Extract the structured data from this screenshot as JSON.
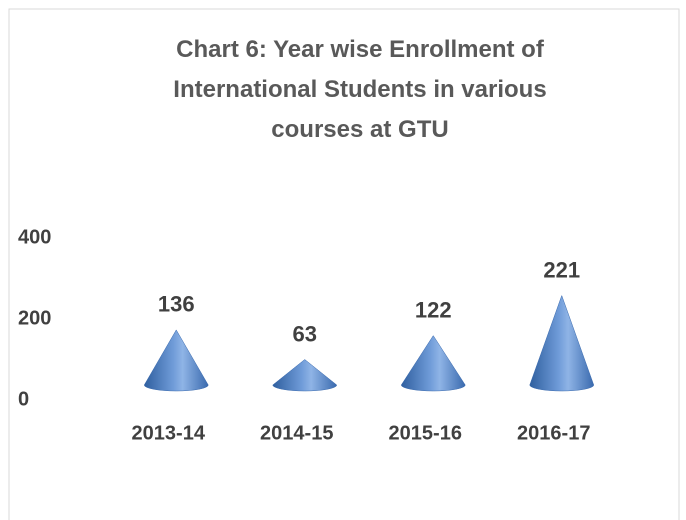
{
  "chart_data": {
    "type": "cone",
    "title": "Chart 6: Year wise Enrollment of International Students in various courses at GTU",
    "categories": [
      "2013-14",
      "2014-15",
      "2015-16",
      "2016-17"
    ],
    "values": [
      136,
      63,
      122,
      221
    ],
    "color": "#4f81bd",
    "ylim": [
      0,
      400
    ],
    "yticks": [
      0,
      200,
      400
    ],
    "grid": false
  }
}
